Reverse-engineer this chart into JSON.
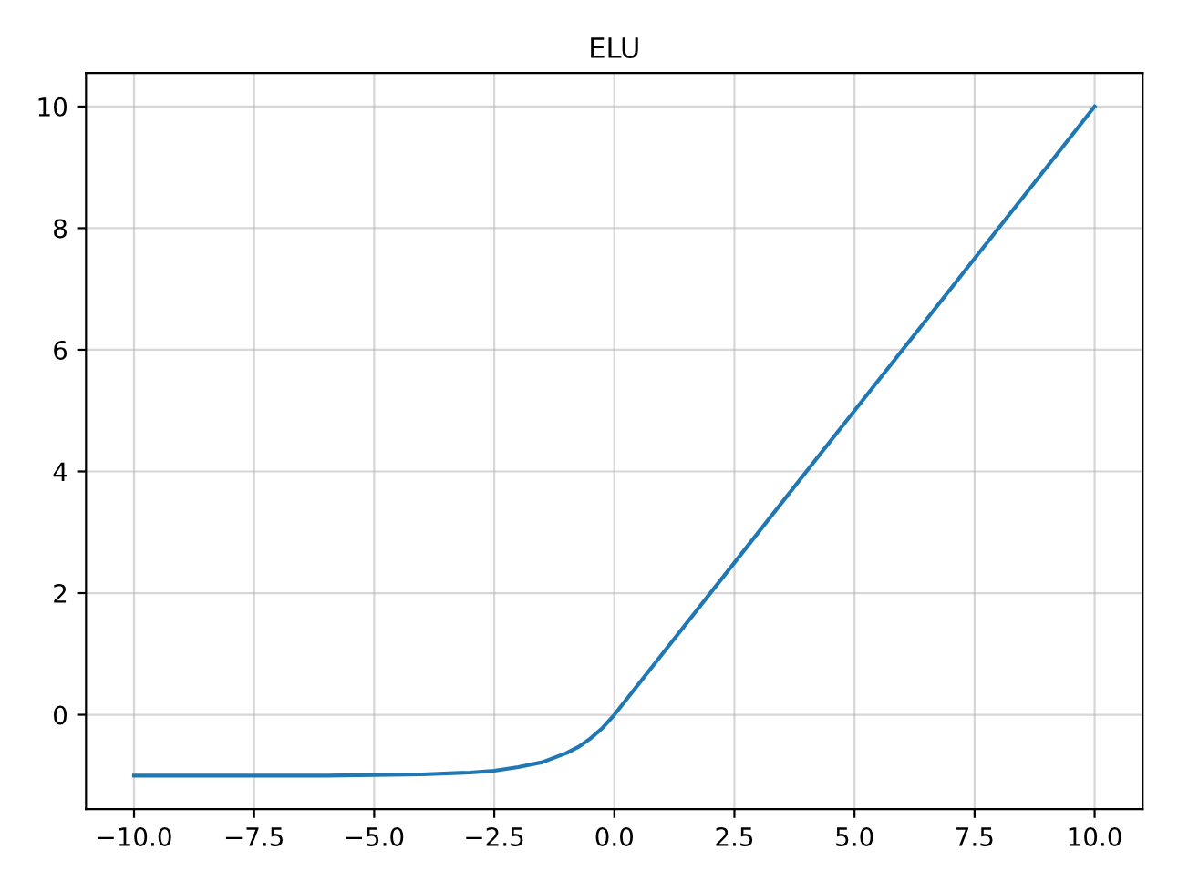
{
  "chart_data": {
    "type": "line",
    "title": "ELU",
    "x": [
      -10,
      -8,
      -6,
      -5,
      -4,
      -3,
      -2.5,
      -2,
      -1.5,
      -1,
      -0.75,
      -0.5,
      -0.25,
      0,
      2.5,
      5,
      7.5,
      10
    ],
    "series": [
      {
        "color": "#1f77b4",
        "values": [
          -1.0,
          -1.0,
          -1.0,
          -0.99,
          -0.98,
          -0.95,
          -0.92,
          -0.86,
          -0.78,
          -0.63,
          -0.53,
          -0.39,
          -0.22,
          0,
          2.5,
          5,
          7.5,
          10
        ]
      }
    ],
    "xlim": [
      -11,
      11
    ],
    "ylim": [
      -1.55,
      10.55
    ],
    "xticks": [
      {
        "value": -10,
        "label": "−10.0"
      },
      {
        "value": -7.5,
        "label": "−7.5"
      },
      {
        "value": -5,
        "label": "−5.0"
      },
      {
        "value": -2.5,
        "label": "−2.5"
      },
      {
        "value": 0,
        "label": "0.0"
      },
      {
        "value": 2.5,
        "label": "2.5"
      },
      {
        "value": 5,
        "label": "5.0"
      },
      {
        "value": 7.5,
        "label": "7.5"
      },
      {
        "value": 10,
        "label": "10.0"
      }
    ],
    "yticks": [
      0,
      2,
      4,
      6,
      8,
      10
    ],
    "grid": true
  }
}
